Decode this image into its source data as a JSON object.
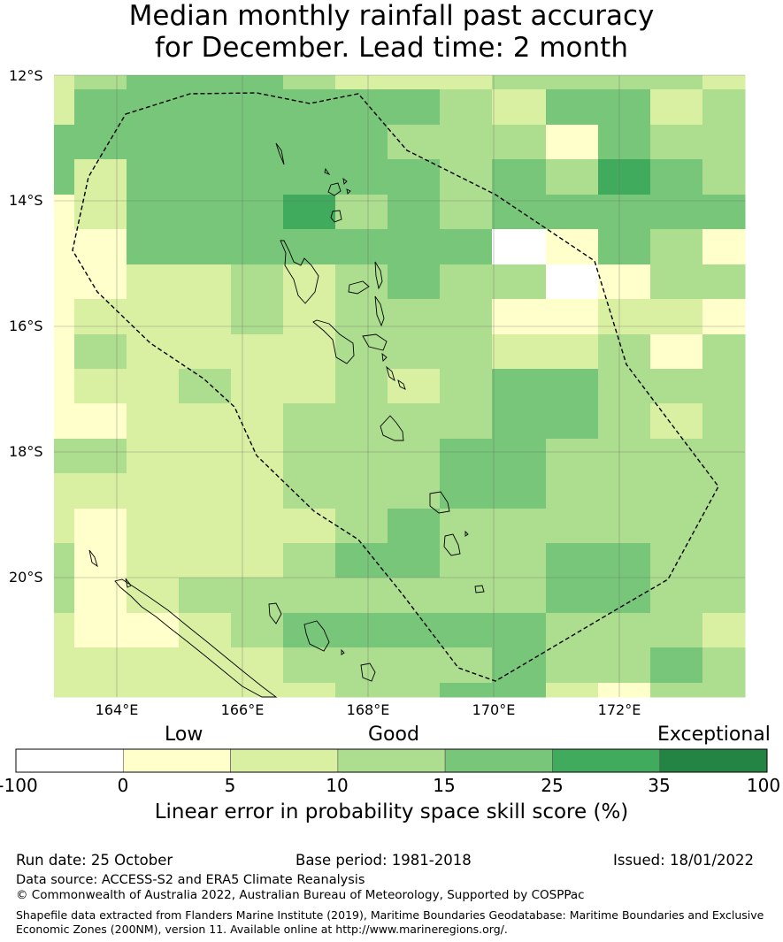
{
  "title_line1": "Median monthly rainfall past accuracy",
  "title_line2": "for December. Lead time: 2 month",
  "map": {
    "lon_range": [
      163.0,
      174.0
    ],
    "lat_range": [
      -22.0,
      -12.0
    ],
    "lat_ticks": [
      "12°S",
      "14°S",
      "16°S",
      "18°S",
      "20°S"
    ],
    "lon_ticks": [
      "164°E",
      "166°E",
      "168°E",
      "170°E",
      "172°E"
    ],
    "region": "Vanuatu EEZ (dashed boundary)"
  },
  "colorbar": {
    "category_labels": [
      "Low",
      "Good",
      "Exceptional"
    ],
    "tick_labels": [
      "-100",
      "0",
      "5",
      "10",
      "15",
      "25",
      "35",
      "100"
    ],
    "colors": [
      "#ffffff",
      "#ffffcc",
      "#d9f0a3",
      "#addd8e",
      "#78c679",
      "#41ab5d",
      "#238443"
    ],
    "title": "Linear error in probability space skill score (%)"
  },
  "footer": {
    "run_date": "Run date: 25 October",
    "base_period": "Base period: 1981-2018",
    "issued": "Issued: 18/01/2022",
    "data_source": "Data source: ACCESS-S2 and ERA5 Climate Reanalysis",
    "copyright": "© Commonwealth of Australia 2022, Australian Bureau of Meteorology, Supported by COSPPac",
    "shapefile_line1": "Shapefile data extracted from Flanders Marine Institute (2019), Maritime Boundaries Geodatabase: Maritime Boundaries and Exclusive",
    "shapefile_line2": "Economic Zones (200NM), version 11. Available online at http://www.marineregions.org/."
  }
}
